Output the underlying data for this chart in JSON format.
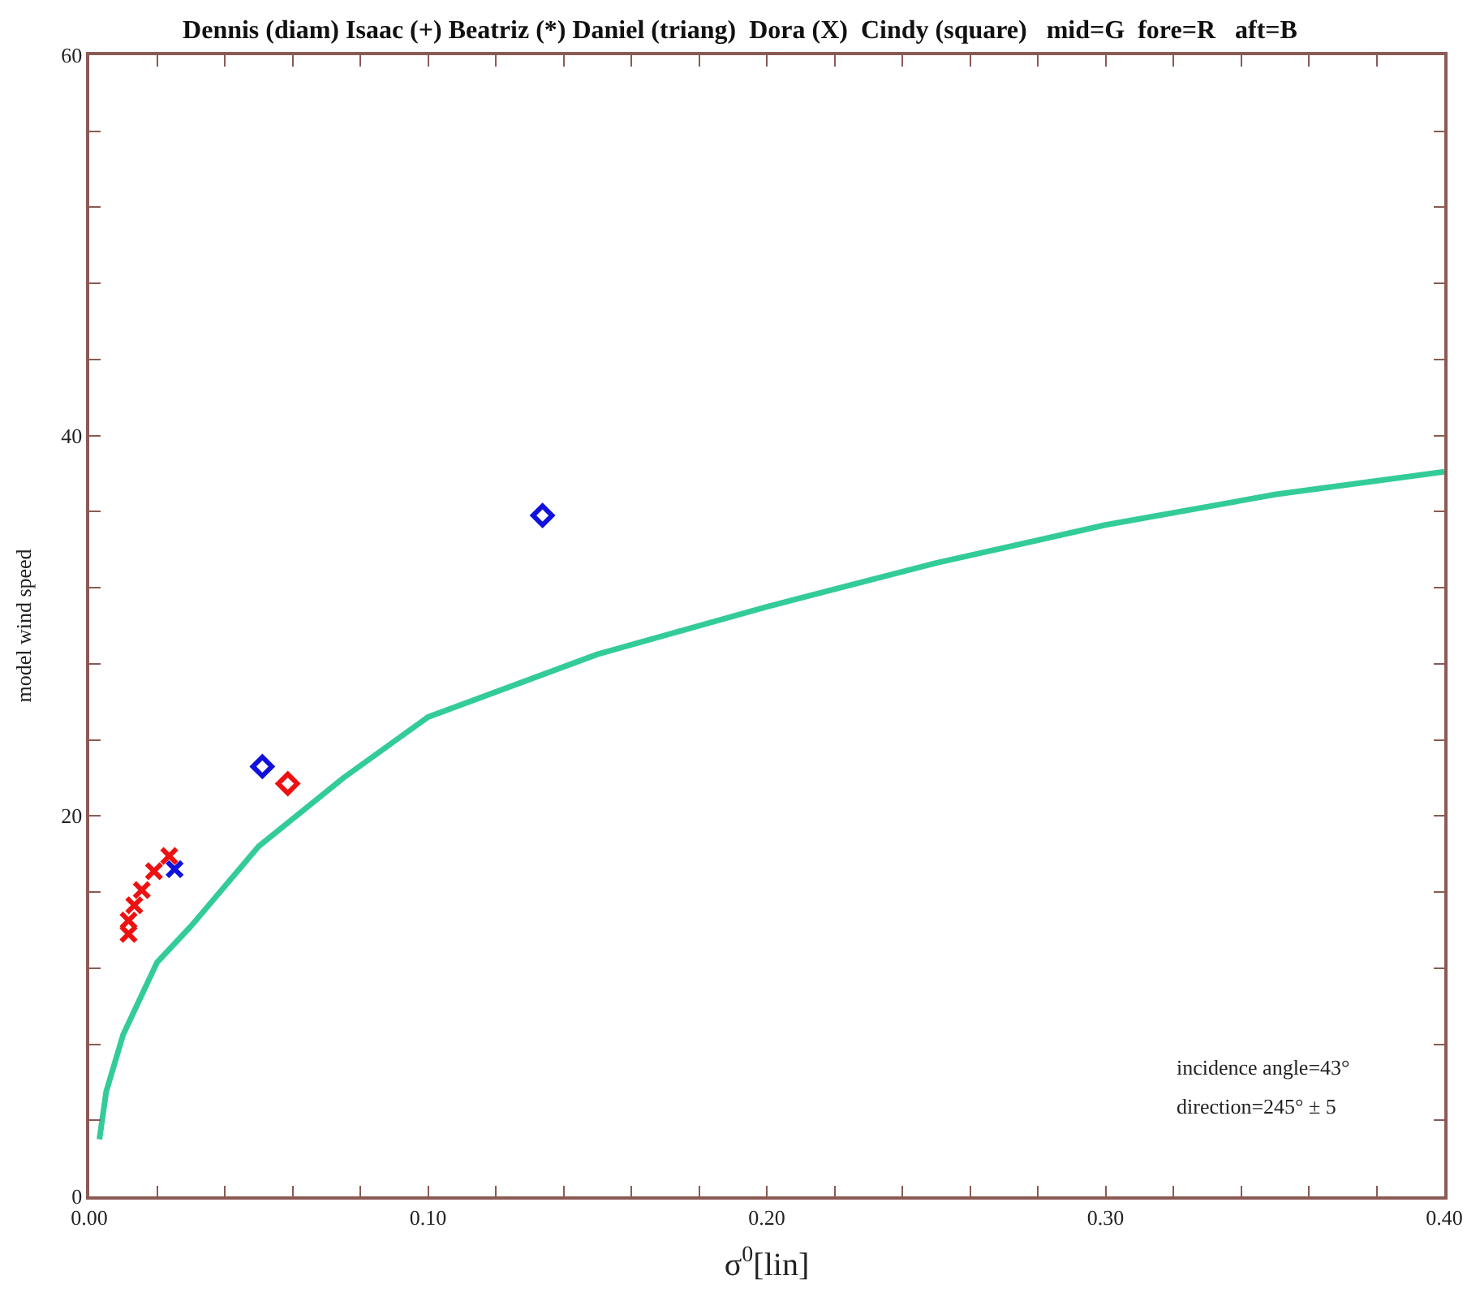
{
  "chart_data": {
    "type": "scatter",
    "title": "Dennis (diam) Isaac (+) Beatriz (*) Daniel (triang)  Dora (X)  Cindy (square)   mid=G  fore=R   aft=B",
    "xlabel": "σ$^{0}$[lin]",
    "ylabel": "model wind speed",
    "annotations": [
      "incidence angle=43°",
      "direction=245° ± 5"
    ],
    "xlim": [
      0,
      0.4
    ],
    "ylim": [
      0,
      60
    ],
    "xticks": [
      {
        "value": 0,
        "label": "0.00"
      },
      {
        "value": 0.02,
        "label": null
      },
      {
        "value": 0.04,
        "label": null
      },
      {
        "value": 0.06,
        "label": null
      },
      {
        "value": 0.08,
        "label": null
      },
      {
        "value": 0.1,
        "label": "0.10"
      },
      {
        "value": 0.12,
        "label": null
      },
      {
        "value": 0.14,
        "label": null
      },
      {
        "value": 0.16,
        "label": null
      },
      {
        "value": 0.18,
        "label": null
      },
      {
        "value": 0.2,
        "label": "0.20"
      },
      {
        "value": 0.22,
        "label": null
      },
      {
        "value": 0.24,
        "label": null
      },
      {
        "value": 0.26,
        "label": null
      },
      {
        "value": 0.28,
        "label": null
      },
      {
        "value": 0.3,
        "label": "0.30"
      },
      {
        "value": 0.32,
        "label": null
      },
      {
        "value": 0.34,
        "label": null
      },
      {
        "value": 0.36,
        "label": null
      },
      {
        "value": 0.38,
        "label": null
      },
      {
        "value": 0.4,
        "label": "0.40"
      }
    ],
    "yticks": [
      0,
      {
        "value": 4,
        "label": null
      },
      {
        "value": 8,
        "label": null
      },
      {
        "value": 12,
        "label": null
      },
      {
        "value": 16,
        "label": null
      },
      20,
      {
        "value": 24,
        "label": null
      },
      {
        "value": 28,
        "label": null
      },
      {
        "value": 32,
        "label": null
      },
      {
        "value": 36,
        "label": null
      },
      40,
      {
        "value": 44,
        "label": null
      },
      {
        "value": 48,
        "label": null
      },
      {
        "value": 52,
        "label": null
      },
      {
        "value": 56,
        "label": null
      },
      60
    ],
    "series": [
      {
        "type": "line",
        "color": "#33cc99",
        "marker": "none",
        "line_style": "solid",
        "x": [
          0.003,
          0.005,
          0.01,
          0.02,
          0.03,
          0.05,
          0.075,
          0.1,
          0.15,
          0.2,
          0.25,
          0.3,
          0.35,
          0.4
        ],
        "values": [
          3,
          5.5,
          8.5,
          12.3,
          14.2,
          18.4,
          22,
          25.2,
          28.5,
          31,
          33.3,
          35.3,
          36.9,
          38.1
        ]
      },
      {
        "color": "#ee1111",
        "marker": "cross",
        "x": [
          0.0116,
          0.0116,
          0.0133,
          0.0155,
          0.0191,
          0.0236
        ],
        "values": [
          13.8,
          14.5,
          15.3,
          16.1,
          17.1,
          17.9
        ]
      },
      {
        "color": "#1111dd",
        "marker": "cross",
        "x": [
          0.0252
        ],
        "values": [
          17.2
        ]
      },
      {
        "color": "#1111dd",
        "marker": "diamond",
        "x": [
          0.0511,
          0.1338
        ],
        "values": [
          22.6,
          35.8
        ]
      },
      {
        "color": "#ee1111",
        "marker": "diamond",
        "x": [
          0.0586
        ],
        "values": [
          21.7
        ]
      }
    ]
  }
}
